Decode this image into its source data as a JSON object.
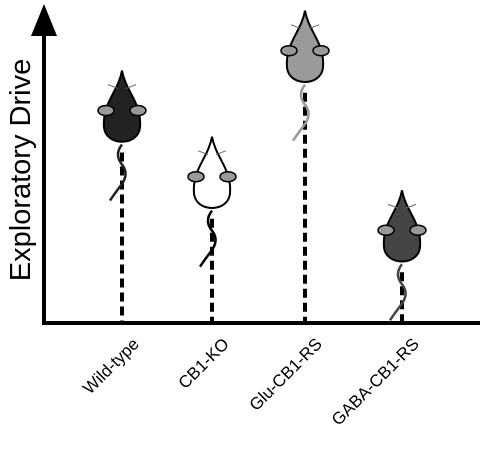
{
  "chart_data": {
    "type": "mouse-stem",
    "ylabel": "Exploratory Drive",
    "categories": [
      "Wild-type",
      "CB1-KO",
      "Glu-CB1-RS",
      "GABA-CB1-RS"
    ],
    "values": [
      63,
      42,
      82,
      25
    ],
    "colors": [
      "#222222",
      "#ffffff",
      "#9a9a9a",
      "#454545"
    ],
    "ylim": [
      0,
      100
    ]
  }
}
